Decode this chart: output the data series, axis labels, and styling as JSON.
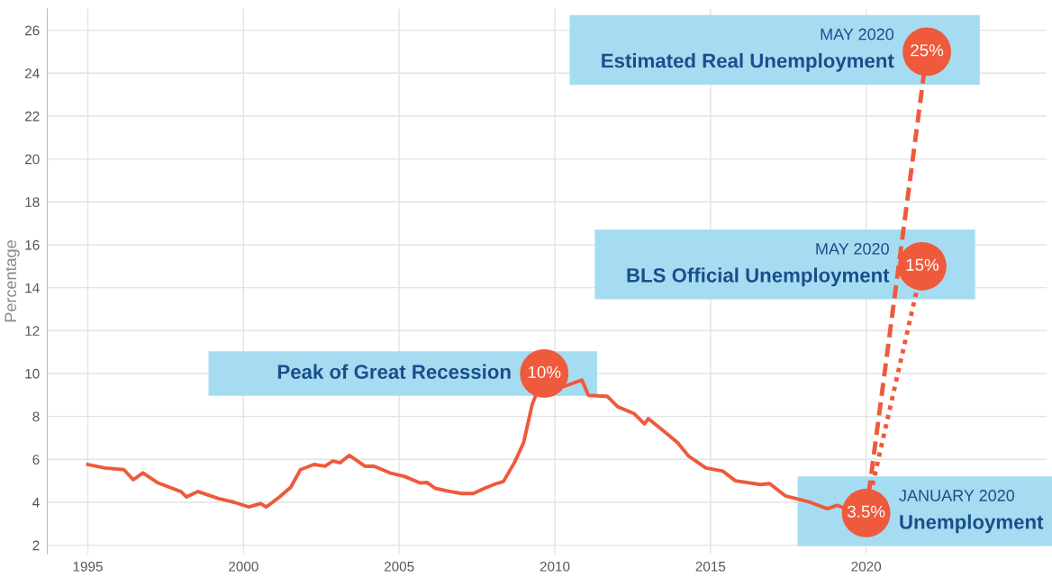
{
  "chart_data": {
    "type": "line",
    "ylabel": "Percentage",
    "xlim": [
      1993.7,
      2025.8
    ],
    "ylim": [
      1.6,
      27
    ],
    "xticks": [
      1995,
      2000,
      2005,
      2010,
      2015,
      2020
    ],
    "yticks": [
      2,
      4,
      6,
      8,
      10,
      12,
      14,
      16,
      18,
      20,
      22,
      24,
      26
    ],
    "grid": true,
    "legend": false,
    "series": [
      {
        "color": "#ee5a3b",
        "line_style": "solid",
        "x": [
          1995,
          1995.55,
          1996.16,
          1996.46,
          1996.77,
          1997.26,
          1997.99,
          1998.17,
          1998.54,
          1999.2,
          1999.7,
          2000.18,
          2000.55,
          2000.73,
          2001.16,
          2001.52,
          2001.83,
          2002.26,
          2002.62,
          2002.87,
          2003.1,
          2003.4,
          2003.9,
          2004.2,
          2004.7,
          2005.18,
          2005.67,
          2005.9,
          2006.16,
          2006.65,
          2007.0,
          2007.38,
          2007.74,
          2008.1,
          2008.35,
          2008.7,
          2009.0,
          2009.27,
          2009.66,
          2010.3,
          2010.87,
          2011.08,
          2011.68,
          2012.02,
          2012.55,
          2012.88,
          2013.0,
          2013.6,
          2013.95,
          2014.3,
          2014.85,
          2015.4,
          2015.8,
          2016.6,
          2016.9,
          2017.4,
          2018.2,
          2018.75,
          2019.07,
          2019.5,
          2020.0
        ],
        "values": [
          5.76,
          5.6,
          5.52,
          5.05,
          5.37,
          4.9,
          4.5,
          4.25,
          4.5,
          4.17,
          4.0,
          3.78,
          3.94,
          3.78,
          4.25,
          4.7,
          5.52,
          5.76,
          5.68,
          5.92,
          5.84,
          6.19,
          5.68,
          5.68,
          5.37,
          5.2,
          4.9,
          4.92,
          4.65,
          4.5,
          4.41,
          4.41,
          4.65,
          4.86,
          4.97,
          5.84,
          6.79,
          8.54,
          10.0,
          9.4,
          9.7,
          8.98,
          8.94,
          8.45,
          8.13,
          7.65,
          7.9,
          7.2,
          6.77,
          6.15,
          5.6,
          5.45,
          5.0,
          4.83,
          4.87,
          4.3,
          4.0,
          3.7,
          3.86,
          3.6,
          3.5
        ]
      },
      {
        "color": "#ee5a3b",
        "line_style": "dashed",
        "x": [
          2020.0,
          2021.95
        ],
        "values": [
          3.5,
          25
        ]
      },
      {
        "color": "#ee5a3b",
        "line_style": "dotted",
        "x": [
          2020.0,
          2021.8
        ],
        "values": [
          3.5,
          15
        ]
      },
      {
        "type": "scatter",
        "color": "#ee5a3b",
        "marker": "circle",
        "x": [
          2009.66,
          2021.8,
          2021.95,
          2020.0
        ],
        "values": [
          10,
          15,
          25,
          3.5
        ],
        "value_labels": [
          "10%",
          "15%",
          "25%",
          "3.5%"
        ]
      }
    ],
    "annotations": [
      {
        "text": "Peak of Great Recession",
        "x": 2009.66,
        "y": 10
      },
      {
        "text": "MAY 2020\nBLS Official Unemployment",
        "x": 2021.8,
        "y": 15
      },
      {
        "text": "MAY 2020\nEstimated Real Unemployment",
        "x": 2021.95,
        "y": 25
      },
      {
        "text": "JANUARY 2020\nUnemployment",
        "x": 2020.0,
        "y": 3.5
      }
    ]
  }
}
